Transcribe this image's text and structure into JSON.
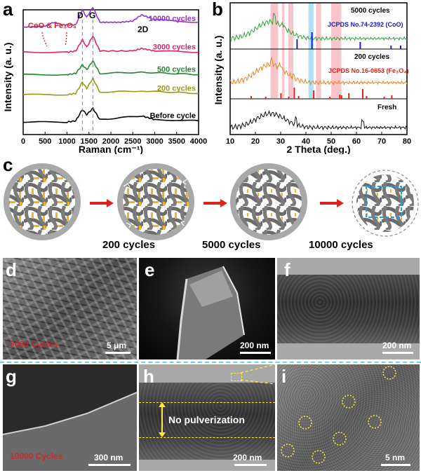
{
  "panels": {
    "a": "a",
    "b": "b",
    "c": "c",
    "d": "d",
    "e": "e",
    "f": "f",
    "g": "g",
    "h": "h",
    "i": "i"
  },
  "chart_data": [
    {
      "type": "line",
      "panel": "a",
      "xlabel": "Raman (cm⁻¹)",
      "ylabel": "Intensity (a. u.)",
      "xlim": [
        0,
        4000
      ],
      "xticks": [
        "0",
        "500",
        "1000",
        "1500",
        "2000",
        "2500",
        "3000",
        "3500",
        "4000"
      ],
      "peak_labels": [
        "D",
        "G",
        "2D"
      ],
      "annotation": "CoO & Fe₃O₄",
      "series": [
        {
          "name": "10000 cycles",
          "color": "#9a2fd0",
          "points": [
            [
              0,
              0.86
            ],
            [
              500,
              0.87
            ],
            [
              700,
              0.9
            ],
            [
              900,
              0.88
            ],
            [
              1200,
              0.88
            ],
            [
              1350,
              1.0
            ],
            [
              1450,
              0.94
            ],
            [
              1590,
              1.02
            ],
            [
              1750,
              0.9
            ],
            [
              2200,
              0.9
            ],
            [
              2500,
              0.91
            ],
            [
              2700,
              0.96
            ],
            [
              3000,
              0.92
            ],
            [
              4000,
              0.9
            ]
          ]
        },
        {
          "name": "3000 cycles",
          "color": "#e0236f",
          "points": [
            [
              0,
              0.66
            ],
            [
              1000,
              0.66
            ],
            [
              1200,
              0.67
            ],
            [
              1350,
              0.76
            ],
            [
              1450,
              0.7
            ],
            [
              1590,
              0.79
            ],
            [
              1750,
              0.67
            ],
            [
              2500,
              0.67
            ],
            [
              2700,
              0.69
            ],
            [
              3000,
              0.67
            ],
            [
              4000,
              0.66
            ]
          ]
        },
        {
          "name": "500 cycles",
          "color": "#1f8a2c",
          "points": [
            [
              0,
              0.48
            ],
            [
              1000,
              0.48
            ],
            [
              1200,
              0.49
            ],
            [
              1350,
              0.56
            ],
            [
              1450,
              0.52
            ],
            [
              1590,
              0.59
            ],
            [
              1750,
              0.49
            ],
            [
              2700,
              0.5
            ],
            [
              4000,
              0.48
            ]
          ]
        },
        {
          "name": "200 cycles",
          "color": "#9a9a1a",
          "points": [
            [
              0,
              0.32
            ],
            [
              1000,
              0.32
            ],
            [
              1200,
              0.33
            ],
            [
              1350,
              0.42
            ],
            [
              1450,
              0.37
            ],
            [
              1590,
              0.45
            ],
            [
              1750,
              0.34
            ],
            [
              2700,
              0.35
            ],
            [
              4000,
              0.33
            ]
          ]
        },
        {
          "name": "Before cycle",
          "color": "#000000",
          "points": [
            [
              0,
              0.1
            ],
            [
              1000,
              0.1
            ],
            [
              1200,
              0.11
            ],
            [
              1350,
              0.2
            ],
            [
              1450,
              0.16
            ],
            [
              1590,
              0.21
            ],
            [
              1750,
              0.12
            ],
            [
              2700,
              0.15
            ],
            [
              3000,
              0.12
            ],
            [
              4000,
              0.11
            ]
          ]
        }
      ]
    },
    {
      "type": "line",
      "panel": "b",
      "xlabel": "2 Theta (deg.)",
      "ylabel": "Intensity (a. u.)",
      "xlim": [
        10,
        80
      ],
      "xticks": [
        "10",
        "20",
        "30",
        "40",
        "50",
        "60",
        "70",
        "80"
      ],
      "series_labels": [
        "5000 cycles",
        "200 cycles",
        "Fresh"
      ],
      "reference_labels": [
        "JCPDS No.74-2392 (CoO)",
        "JCPDS No.16-0653 (Fe₃O₄)"
      ],
      "pink_bands_2theta": [
        [
          26,
          29
        ],
        [
          30.5,
          31.5
        ],
        [
          33,
          35
        ],
        [
          44,
          46
        ],
        [
          50,
          54
        ]
      ],
      "blue_band_2theta": [
        41,
        43
      ],
      "coo_ref_lines": [
        36.5,
        42.4,
        61.5,
        73.7,
        77.5
      ],
      "fe3o4_ref_lines": [
        18.3,
        24.1,
        30.1,
        33.2,
        35.4,
        37.1,
        43.1,
        49.5,
        53.4,
        54.1,
        57.0,
        62.5,
        64.0,
        71.0,
        74.0
      ]
    }
  ],
  "schematic": {
    "labels": [
      "200 cycles",
      "5000 cycles",
      "10000 cycles"
    ]
  },
  "micrographs": {
    "d": {
      "scale": "5 μm",
      "overlay": "5000 Cycles"
    },
    "e": {
      "scale": "200 nm"
    },
    "f": {
      "scale": "200 nm"
    },
    "g": {
      "scale": "300 nm",
      "overlay": "10000 Cycles"
    },
    "h": {
      "scale": "200 nm",
      "caption": "No pulverization"
    },
    "i": {
      "scale": "5 nm"
    }
  }
}
